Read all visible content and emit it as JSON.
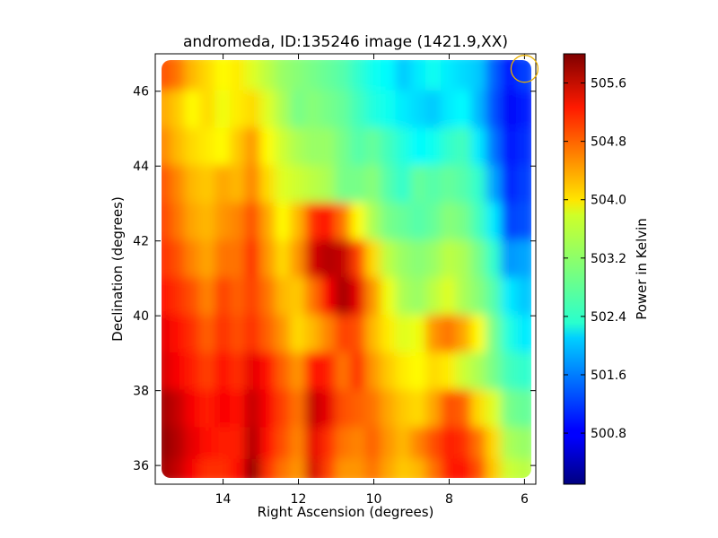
{
  "chart_data": {
    "type": "heatmap",
    "title": "andromeda, ID:135246 image (1421.9,XX)",
    "xlabel": "Right Ascension (degrees)",
    "ylabel": "Declination (degrees)",
    "xlim": [
      15.8,
      5.7
    ],
    "ylim": [
      35.5,
      47.0
    ],
    "x_ticks": [
      14,
      12,
      10,
      8,
      6
    ],
    "y_ticks": [
      36,
      38,
      40,
      42,
      44,
      46
    ],
    "colorbar": {
      "label": "Power in Kelvin",
      "range": [
        500.1,
        506.0
      ],
      "ticks": [
        "500.8",
        "501.6",
        "502.4",
        "503.2",
        "504.0",
        "504.8",
        "505.6"
      ],
      "colormap": "jet"
    },
    "marker": {
      "shape": "circle",
      "ra": 6.0,
      "dec": 46.6,
      "color": "#e8b000"
    },
    "grid_ra": [
      15.6,
      15.2,
      14.8,
      14.4,
      14.0,
      13.6,
      13.2,
      12.8,
      12.4,
      12.0,
      11.6,
      11.2,
      10.8,
      10.4,
      10.0,
      9.6,
      9.2,
      8.8,
      8.4,
      8.0,
      7.6,
      7.2,
      6.8,
      6.4,
      6.0
    ],
    "grid_dec": [
      46.5,
      45.5,
      44.5,
      43.5,
      42.5,
      41.5,
      40.5,
      39.5,
      38.5,
      37.5,
      36.5,
      35.8
    ],
    "grid_values": [
      [
        504.8,
        504.6,
        504.2,
        504.0,
        503.8,
        503.9,
        503.6,
        503.4,
        503.2,
        503.1,
        503.0,
        502.9,
        502.8,
        502.6,
        502.4,
        502.3,
        502.0,
        502.2,
        502.4,
        502.2,
        502.1,
        502.0,
        501.4,
        500.9,
        501.2
      ],
      [
        504.3,
        504.1,
        503.8,
        504.0,
        503.7,
        503.9,
        504.0,
        503.6,
        503.3,
        503.0,
        503.1,
        503.0,
        502.9,
        502.7,
        502.5,
        502.4,
        502.2,
        502.1,
        502.0,
        502.2,
        502.3,
        501.9,
        501.3,
        500.8,
        501.0
      ],
      [
        504.5,
        504.2,
        504.0,
        503.9,
        503.8,
        504.1,
        504.4,
        503.8,
        503.5,
        503.3,
        503.2,
        503.2,
        503.0,
        502.8,
        502.9,
        502.7,
        502.5,
        502.3,
        502.4,
        502.6,
        502.7,
        502.2,
        501.5,
        500.9,
        501.1
      ],
      [
        504.8,
        504.5,
        504.2,
        504.1,
        504.3,
        504.2,
        504.5,
        504.0,
        503.6,
        503.5,
        503.4,
        503.3,
        503.0,
        503.0,
        503.1,
        502.8,
        502.6,
        502.9,
        502.8,
        502.9,
        502.8,
        502.6,
        501.8,
        501.0,
        501.2
      ],
      [
        504.9,
        504.6,
        504.3,
        504.2,
        504.4,
        504.5,
        504.8,
        504.3,
        503.8,
        504.2,
        505.0,
        505.2,
        504.6,
        503.8,
        503.3,
        503.0,
        502.9,
        502.8,
        502.9,
        503.1,
        503.0,
        502.7,
        502.2,
        501.2,
        501.3
      ],
      [
        505.0,
        504.8,
        504.5,
        504.3,
        504.6,
        504.6,
        505.0,
        504.4,
        504.0,
        504.4,
        505.5,
        505.7,
        505.6,
        504.9,
        504.0,
        503.4,
        503.2,
        503.1,
        503.2,
        503.4,
        503.3,
        503.0,
        502.6,
        501.7,
        501.8
      ],
      [
        505.2,
        505.0,
        504.8,
        504.5,
        504.9,
        504.7,
        504.9,
        504.6,
        504.2,
        504.1,
        504.6,
        505.3,
        505.8,
        505.4,
        504.4,
        503.7,
        503.3,
        503.2,
        503.4,
        503.6,
        503.3,
        503.1,
        502.8,
        502.2,
        502.0
      ],
      [
        505.4,
        505.2,
        505.0,
        504.7,
        505.0,
        504.8,
        505.0,
        504.7,
        504.4,
        504.0,
        504.2,
        504.5,
        504.9,
        504.8,
        504.2,
        503.9,
        503.6,
        503.7,
        504.4,
        504.6,
        504.3,
        503.8,
        503.0,
        502.5,
        502.2
      ],
      [
        505.5,
        505.3,
        505.1,
        504.9,
        505.2,
        505.0,
        505.4,
        505.2,
        504.7,
        504.4,
        505.2,
        505.1,
        504.6,
        505.0,
        504.4,
        504.1,
        503.9,
        503.8,
        504.0,
        503.9,
        503.5,
        503.3,
        503.0,
        502.7,
        502.6
      ],
      [
        505.8,
        505.6,
        505.3,
        505.1,
        505.3,
        505.2,
        505.6,
        505.3,
        504.9,
        504.6,
        505.6,
        505.4,
        504.8,
        504.7,
        504.6,
        504.3,
        504.1,
        504.0,
        504.3,
        504.8,
        504.7,
        504.0,
        503.6,
        503.0,
        502.9
      ],
      [
        505.9,
        505.7,
        505.4,
        505.2,
        505.1,
        505.1,
        505.7,
        505.2,
        504.8,
        504.5,
        505.4,
        505.0,
        504.6,
        504.5,
        504.7,
        504.4,
        504.2,
        504.5,
        504.8,
        505.1,
        505.0,
        504.6,
        504.0,
        503.3,
        503.2
      ],
      [
        505.8,
        505.6,
        505.3,
        505.0,
        505.0,
        505.2,
        505.9,
        505.0,
        504.6,
        504.4,
        505.5,
        504.9,
        504.4,
        504.4,
        504.6,
        504.3,
        504.1,
        504.2,
        504.6,
        505.1,
        505.2,
        504.8,
        504.1,
        503.5,
        503.4
      ]
    ]
  }
}
